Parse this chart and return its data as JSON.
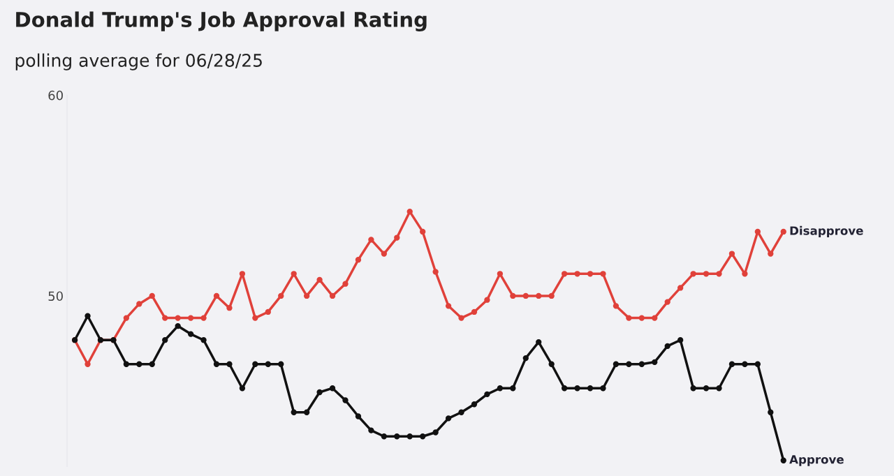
{
  "chart_data": {
    "type": "line",
    "title": "Donald Trump's Job Approval Rating",
    "subtitle": "polling average for 06/28/25",
    "categories": [
      null,
      null,
      null,
      null,
      null,
      null,
      null,
      null,
      null,
      null,
      null,
      null,
      null,
      null,
      null,
      null,
      null,
      null,
      null,
      null,
      null,
      null,
      null,
      null,
      null,
      null,
      null,
      null,
      null,
      null,
      null,
      null,
      null,
      null,
      null,
      null,
      null,
      null,
      null,
      null,
      null,
      null,
      null,
      null,
      null,
      null,
      null,
      null,
      null,
      null,
      null,
      null,
      null,
      null,
      null,
      null
    ],
    "series": [
      {
        "name": "Disapprove",
        "color": "#e0413a",
        "values": [
          47.8,
          46.6,
          47.8,
          47.8,
          48.9,
          49.6,
          50.0,
          48.9,
          48.9,
          48.9,
          48.9,
          50.0,
          49.4,
          51.1,
          48.9,
          49.2,
          50.0,
          51.1,
          50.0,
          50.8,
          50.0,
          50.6,
          51.8,
          52.8,
          52.1,
          52.9,
          54.2,
          53.2,
          51.2,
          49.5,
          48.9,
          49.2,
          49.8,
          51.1,
          50.0,
          50.0,
          50.0,
          50.0,
          51.1,
          51.1,
          51.1,
          51.1,
          49.5,
          48.9,
          48.9,
          48.9,
          49.7,
          50.4,
          51.1,
          51.1,
          51.1,
          52.1,
          51.1,
          53.2,
          52.1,
          53.2
        ]
      },
      {
        "name": "Approve",
        "color": "#111111",
        "values": [
          47.8,
          49.0,
          47.8,
          47.8,
          46.6,
          46.6,
          46.6,
          47.8,
          48.5,
          48.1,
          47.8,
          46.6,
          46.6,
          45.4,
          46.6,
          46.6,
          46.6,
          44.2,
          44.2,
          45.2,
          45.4,
          44.8,
          44.0,
          43.3,
          43.0,
          43.0,
          43.0,
          43.0,
          43.2,
          43.9,
          44.2,
          44.6,
          45.1,
          45.4,
          45.4,
          46.9,
          47.7,
          46.6,
          45.4,
          45.4,
          45.4,
          45.4,
          46.6,
          46.6,
          46.6,
          46.7,
          47.5,
          47.8,
          45.4,
          45.4,
          45.4,
          46.6,
          46.6,
          46.6,
          44.2,
          41.8
        ]
      }
    ],
    "ylim": [
      41.5,
      60
    ],
    "yticks": [
      50,
      60
    ],
    "marker": "circle",
    "line_style": "solid",
    "grid": false,
    "legend": false
  }
}
